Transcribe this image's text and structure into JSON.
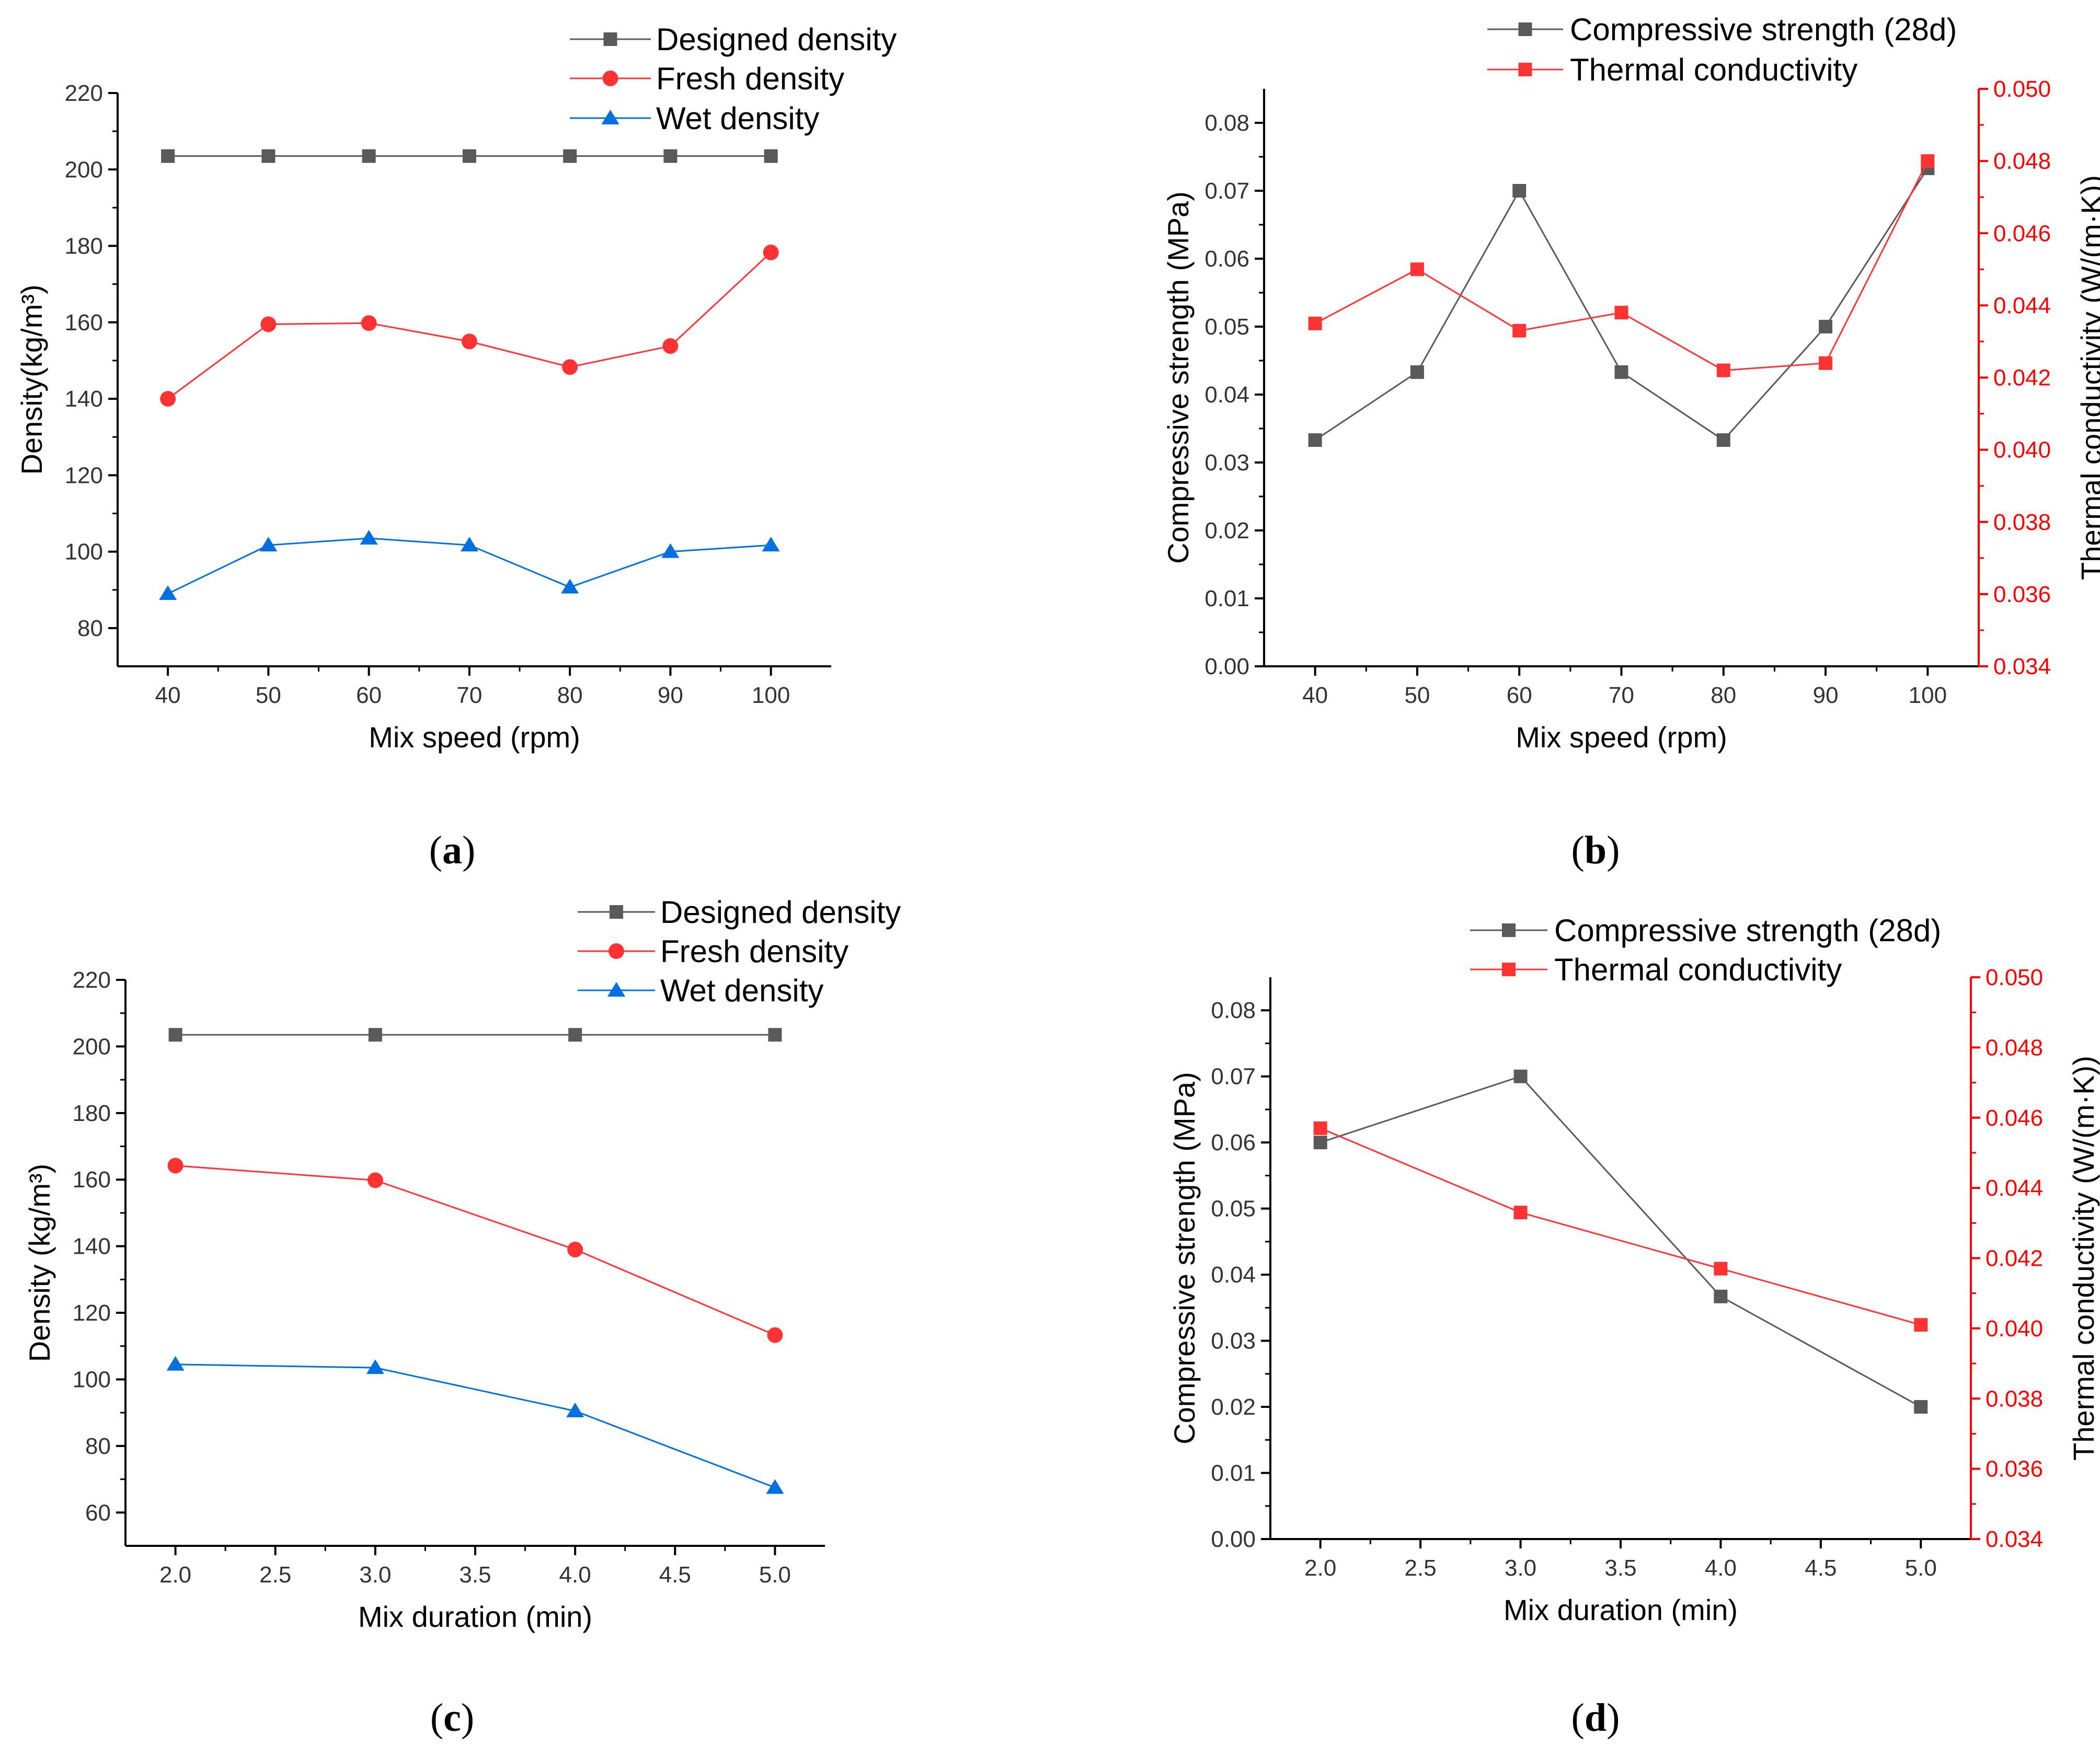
{
  "colors": {
    "grey": "#595959",
    "red": "#ff0000",
    "blue": "#0070e0",
    "axis": "#000000"
  },
  "chart_data": [
    {
      "panel": "(a)",
      "type": "line",
      "xlabel": "Mix speed (rpm)",
      "ylabel": "Density(kg/m³)",
      "x": [
        40,
        50,
        60,
        70,
        80,
        90,
        100
      ],
      "xlim": [
        35,
        106
      ],
      "xticks": [
        40,
        50,
        60,
        70,
        80,
        90,
        100
      ],
      "xtick_labels": [
        "40",
        "50",
        "60",
        "70",
        "80",
        "90",
        "100"
      ],
      "ylim": [
        70,
        220
      ],
      "yticks": [
        80,
        100,
        120,
        140,
        160,
        180,
        200,
        220
      ],
      "ytick_labels": [
        "80",
        "100",
        "120",
        "140",
        "160",
        "180",
        "200",
        "220"
      ],
      "series": [
        {
          "name": "Designed density",
          "color": "#595959",
          "marker": "square",
          "values": [
            203.5,
            203.5,
            203.5,
            203.5,
            203.5,
            203.5,
            203.5
          ]
        },
        {
          "name": "Fresh density",
          "color": "#ff3333",
          "marker": "circle",
          "values": [
            140,
            159.5,
            159.8,
            155,
            148.3,
            153.8,
            178.3
          ]
        },
        {
          "name": "Wet density",
          "color": "#0070e0",
          "marker": "triangle",
          "values": [
            89,
            101.7,
            103.5,
            101.7,
            90.7,
            100,
            101.7
          ]
        }
      ],
      "legend": "top-right"
    },
    {
      "panel": "(b)",
      "type": "line",
      "xlabel": "Mix speed (rpm)",
      "ylabel": "Compressive strength (MPa)",
      "ylabel_right": "Thermal conductivity (W/(m·K))",
      "x": [
        40,
        50,
        60,
        70,
        80,
        90,
        100
      ],
      "xlim": [
        35,
        105
      ],
      "xticks": [
        40,
        50,
        60,
        70,
        80,
        90,
        100
      ],
      "xtick_labels": [
        "40",
        "50",
        "60",
        "70",
        "80",
        "90",
        "100"
      ],
      "ylim": [
        0,
        0.085
      ],
      "yticks": [
        0,
        0.01,
        0.02,
        0.03,
        0.04,
        0.05,
        0.06,
        0.07,
        0.08
      ],
      "ytick_labels": [
        "0.00",
        "0.01",
        "0.02",
        "0.03",
        "0.04",
        "0.05",
        "0.06",
        "0.07",
        "0.08"
      ],
      "ylim_right": [
        0.034,
        0.05
      ],
      "yticks_right": [
        0.034,
        0.036,
        0.038,
        0.04,
        0.042,
        0.044,
        0.046,
        0.048,
        0.05
      ],
      "ytick_labels_right": [
        "0.034",
        "0.036",
        "0.038",
        "0.040",
        "0.042",
        "0.044",
        "0.046",
        "0.048",
        "0.050"
      ],
      "series": [
        {
          "name": "Compressive strength (28d)",
          "axis": "left",
          "color": "#595959",
          "marker": "square",
          "values": [
            0.0333,
            0.0433,
            0.07,
            0.0433,
            0.0333,
            0.05,
            0.0733
          ]
        },
        {
          "name": "Thermal conductivity",
          "axis": "right",
          "color": "#ff3333",
          "marker": "square",
          "values": [
            0.0435,
            0.045,
            0.0433,
            0.0438,
            0.0422,
            0.0424,
            0.048
          ]
        }
      ],
      "legend": "top-center"
    },
    {
      "panel": "(c)",
      "type": "line",
      "xlabel": "Mix duration (min)",
      "ylabel": "Density (kg/m³)",
      "x": [
        2.0,
        3.0,
        4.0,
        5.0
      ],
      "xlim": [
        1.75,
        5.25
      ],
      "xticks": [
        2.0,
        2.5,
        3.0,
        3.5,
        4.0,
        4.5,
        5.0
      ],
      "xtick_labels": [
        "2.0",
        "2.5",
        "3.0",
        "3.5",
        "4.0",
        "4.5",
        "5.0"
      ],
      "ylim": [
        50,
        220
      ],
      "yticks": [
        60,
        80,
        100,
        120,
        140,
        160,
        180,
        200,
        220
      ],
      "ytick_labels": [
        "60",
        "80",
        "100",
        "120",
        "140",
        "160",
        "180",
        "200",
        "220"
      ],
      "series": [
        {
          "name": "Designed density",
          "color": "#595959",
          "marker": "square",
          "values": [
            203.5,
            203.5,
            203.5,
            203.5
          ]
        },
        {
          "name": "Fresh density",
          "color": "#ff3333",
          "marker": "circle",
          "values": [
            164.2,
            159.8,
            139,
            113.3
          ]
        },
        {
          "name": "Wet density",
          "color": "#0070e0",
          "marker": "triangle",
          "values": [
            104.5,
            103.5,
            90.5,
            67.5
          ]
        }
      ],
      "legend": "top-right"
    },
    {
      "panel": "(d)",
      "type": "line",
      "xlabel": "Mix duration (min)",
      "ylabel": "Compressive strength (MPa)",
      "ylabel_right": "Thermal conductivity (W/(m·K))",
      "x": [
        2.0,
        3.0,
        4.0,
        5.0
      ],
      "xlim": [
        1.75,
        5.25
      ],
      "xticks": [
        2.0,
        2.5,
        3.0,
        3.5,
        4.0,
        4.5,
        5.0
      ],
      "xtick_labels": [
        "2.0",
        "2.5",
        "3.0",
        "3.5",
        "4.0",
        "4.5",
        "5.0"
      ],
      "ylim": [
        0,
        0.085
      ],
      "yticks": [
        0,
        0.01,
        0.02,
        0.03,
        0.04,
        0.05,
        0.06,
        0.07,
        0.08
      ],
      "ytick_labels": [
        "0.00",
        "0.01",
        "0.02",
        "0.03",
        "0.04",
        "0.05",
        "0.06",
        "0.07",
        "0.08"
      ],
      "ylim_right": [
        0.034,
        0.05
      ],
      "yticks_right": [
        0.034,
        0.036,
        0.038,
        0.04,
        0.042,
        0.044,
        0.046,
        0.048,
        0.05
      ],
      "ytick_labels_right": [
        "0.034",
        "0.036",
        "0.038",
        "0.040",
        "0.042",
        "0.044",
        "0.046",
        "0.048",
        "0.050"
      ],
      "series": [
        {
          "name": "Compressive strength (28d)",
          "axis": "left",
          "color": "#595959",
          "marker": "square",
          "values": [
            0.06,
            0.07,
            0.0367,
            0.02
          ]
        },
        {
          "name": "Thermal conductivity",
          "axis": "right",
          "color": "#ff3333",
          "marker": "square",
          "values": [
            0.0457,
            0.0433,
            0.0417,
            0.0401
          ]
        }
      ],
      "legend": "top-center"
    }
  ]
}
